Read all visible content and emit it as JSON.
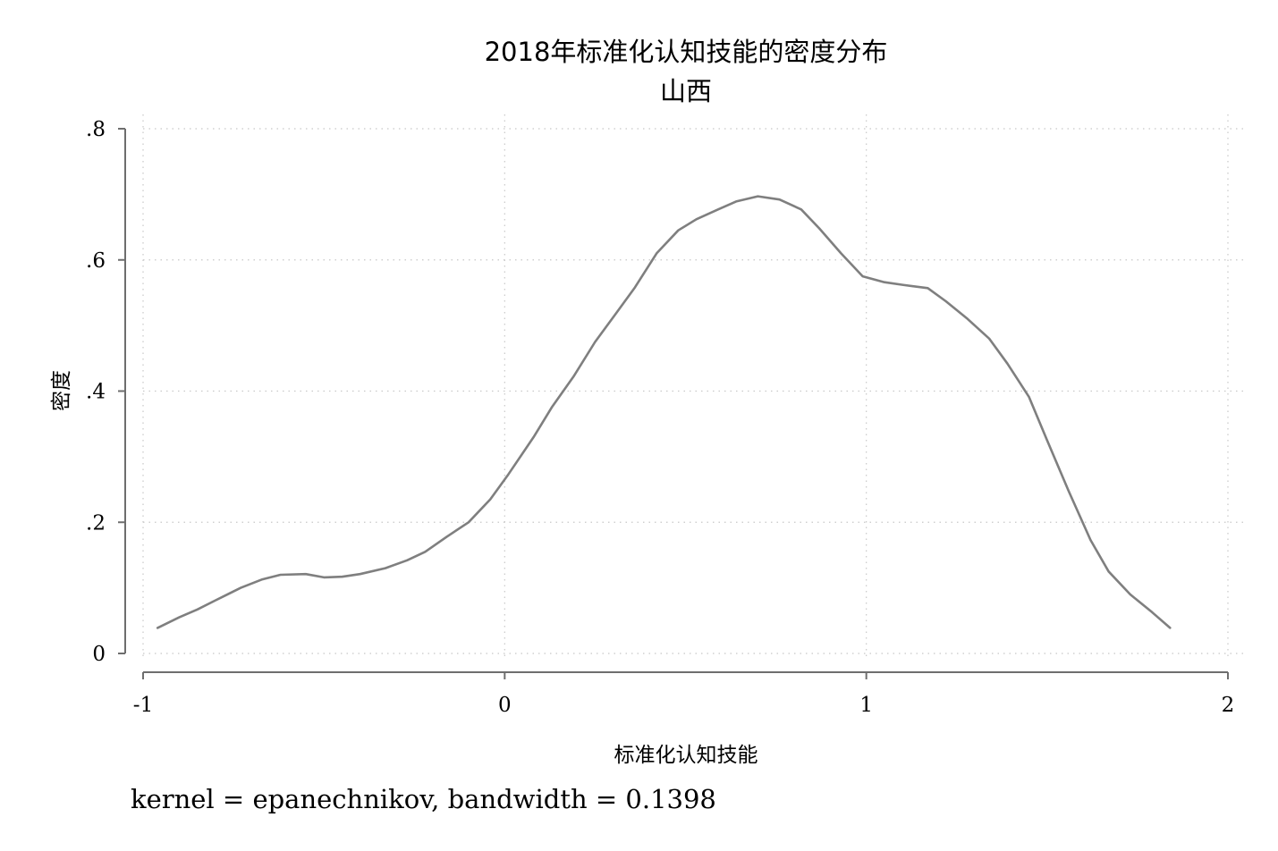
{
  "chart_data": {
    "type": "line",
    "title": "2018年标准化认知技能的密度分布",
    "subtitle": "山西",
    "xlabel": "标准化认知技能",
    "ylabel": "密度",
    "note": "kernel = epanechnikov, bandwidth = 0.1398",
    "xlim": [
      -1,
      2
    ],
    "ylim": [
      0,
      0.8
    ],
    "x_ticks": [
      -1,
      0,
      1,
      2
    ],
    "x_tick_labels": [
      "-1",
      "0",
      "1",
      "2"
    ],
    "y_ticks": [
      0,
      0.2,
      0.4,
      0.6,
      0.8
    ],
    "y_tick_labels": [
      "0",
      ".2",
      ".4",
      ".6",
      ".8"
    ],
    "grid": true,
    "line_color": "#7f7f7f",
    "series": [
      {
        "x": [
          -0.96,
          -0.9,
          -0.85,
          -0.8,
          -0.73,
          -0.67,
          -0.62,
          -0.55,
          -0.5,
          -0.45,
          -0.4,
          -0.33,
          -0.27,
          -0.22,
          -0.16,
          -0.1,
          -0.04,
          0.01,
          0.08,
          0.13,
          0.19,
          0.25,
          0.31,
          0.36,
          0.42,
          0.48,
          0.53,
          0.59,
          0.64,
          0.7,
          0.76,
          0.82,
          0.87,
          0.93,
          0.99,
          1.05,
          1.1,
          1.17,
          1.22,
          1.28,
          1.34,
          1.39,
          1.45,
          1.5,
          1.56,
          1.62,
          1.67,
          1.73,
          1.79,
          1.84
        ],
        "y": [
          0.039,
          0.055,
          0.067,
          0.081,
          0.1,
          0.113,
          0.12,
          0.121,
          0.116,
          0.117,
          0.121,
          0.13,
          0.142,
          0.155,
          0.178,
          0.2,
          0.235,
          0.273,
          0.33,
          0.375,
          0.422,
          0.475,
          0.52,
          0.558,
          0.61,
          0.645,
          0.662,
          0.677,
          0.689,
          0.697,
          0.692,
          0.677,
          0.648,
          0.61,
          0.575,
          0.566,
          0.562,
          0.557,
          0.537,
          0.51,
          0.48,
          0.442,
          0.391,
          0.325,
          0.247,
          0.173,
          0.125,
          0.09,
          0.063,
          0.039
        ]
      }
    ]
  }
}
